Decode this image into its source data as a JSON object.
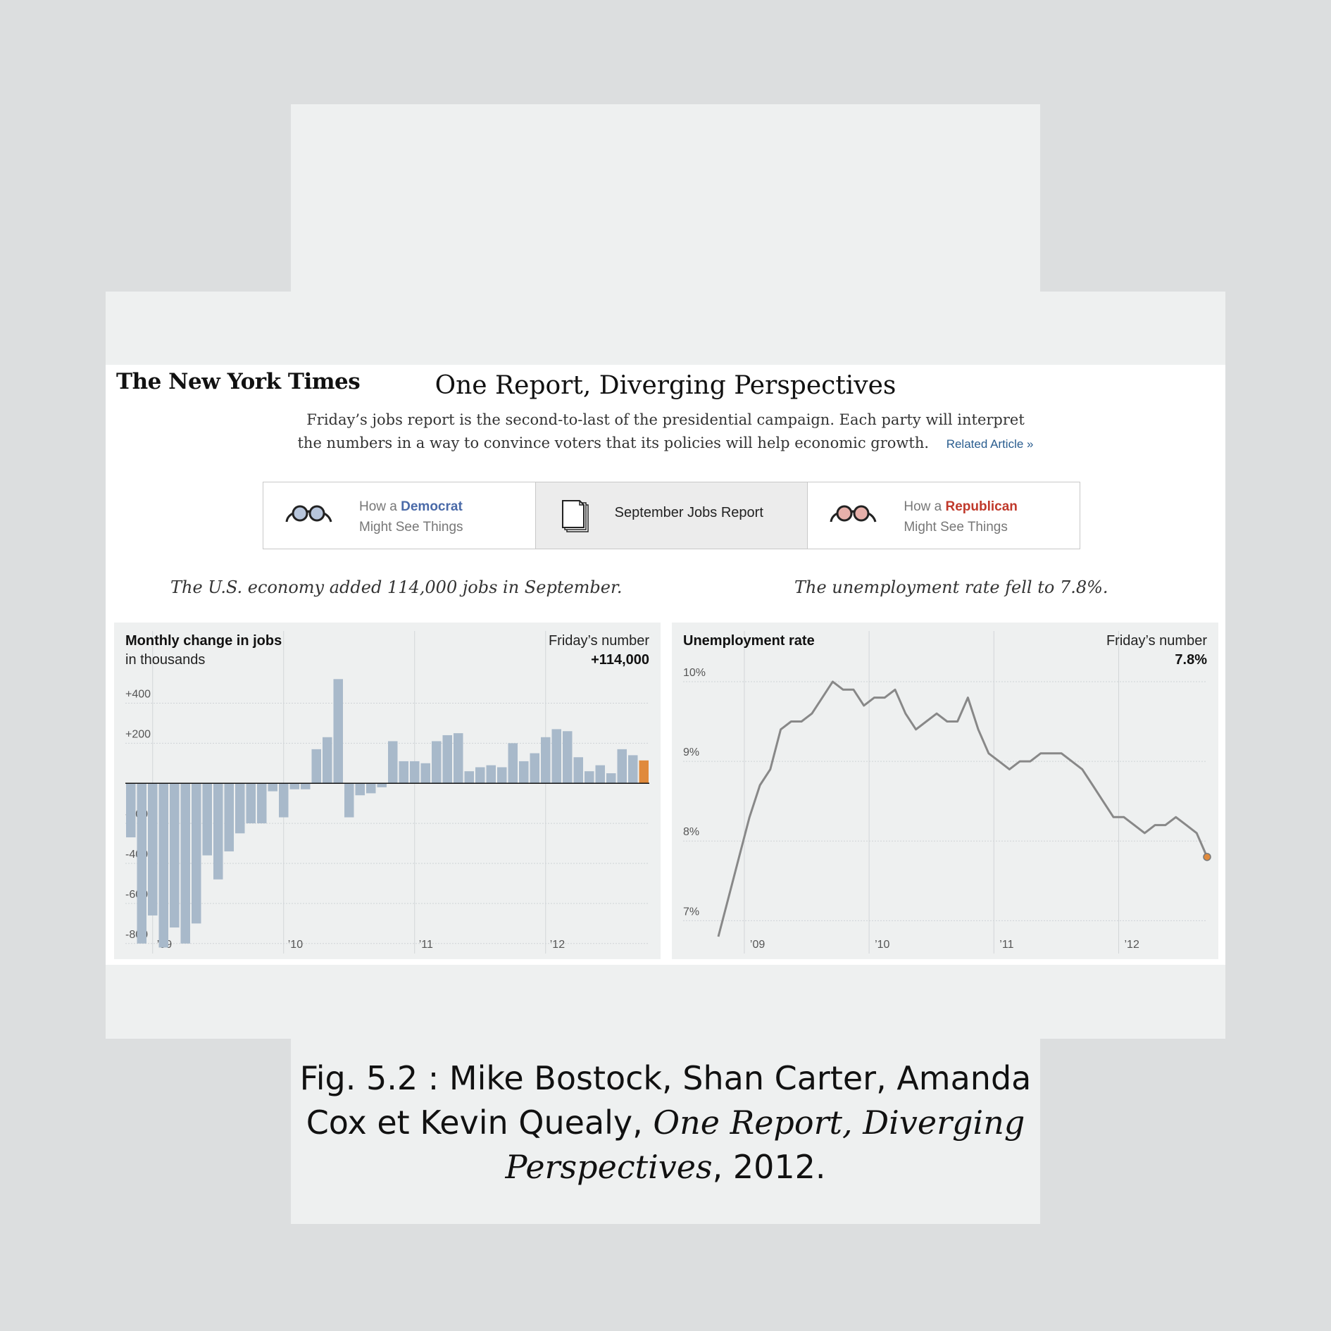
{
  "header": {
    "logo": "The New York Times",
    "title": "One Report, Diverging Perspectives",
    "intro": "Friday’s jobs report is the second-to-last of the presidential campaign. Each party will interpret the numbers in a way to convince voters that its policies will help economic growth.",
    "related_link": "Related Article »"
  },
  "tabs": [
    {
      "prefix": "How a",
      "party": "Democrat",
      "line2": "Might See Things",
      "party_color": "#4a6aa8",
      "icon": "glasses-icon"
    },
    {
      "label": "September Jobs Report",
      "icon": "document-icon"
    },
    {
      "prefix": "How a",
      "party": "Republican",
      "line2": "Might See Things",
      "party_color": "#c0392b",
      "icon": "glasses-icon"
    }
  ],
  "captions": {
    "left": "The U.S. economy added 114,000 jobs in September.",
    "right": "The unemployment rate fell to 7.8%."
  },
  "chart_data": [
    {
      "type": "bar",
      "title": "Monthly change in jobs",
      "subtitle": "in thousands",
      "annotation_label": "Friday’s number",
      "annotation_value": "+114,000",
      "ylim": [
        -850,
        500
      ],
      "yticks": [
        400,
        200,
        -200,
        -400,
        -600,
        -800
      ],
      "ytick_labels": [
        "+400",
        "+200",
        "-200",
        "-400",
        "-600",
        "-800"
      ],
      "xtick_labels": [
        "’09",
        "’10",
        "’11",
        "’12"
      ],
      "xtick_index": [
        2.5,
        14.5,
        26.5,
        38.5
      ],
      "start": "2008-08",
      "values": [
        -270,
        -800,
        -660,
        -820,
        -720,
        -800,
        -700,
        -360,
        -480,
        -340,
        -250,
        -200,
        -200,
        -40,
        -170,
        -30,
        -30,
        170,
        230,
        520,
        -170,
        -60,
        -50,
        -20,
        210,
        110,
        110,
        100,
        210,
        240,
        250,
        60,
        80,
        90,
        80,
        200,
        110,
        150,
        230,
        270,
        260,
        130,
        60,
        90,
        50,
        170,
        140,
        114
      ],
      "highlight_index": 47,
      "bar_color": "#a8b9ca",
      "highlight_color": "#e08a3c"
    },
    {
      "type": "line",
      "title": "Unemployment rate",
      "annotation_label": "Friday’s number",
      "annotation_value": "7.8%",
      "ylim": [
        6.8,
        10.3
      ],
      "yticks": [
        10,
        9,
        8,
        7
      ],
      "ytick_labels": [
        "10%",
        "9%",
        "8%",
        "7%"
      ],
      "xtick_labels": [
        "’09",
        "’10",
        "’11",
        "’12"
      ],
      "xtick_index": [
        2.5,
        14.5,
        26.5,
        38.5
      ],
      "start": "2008-08",
      "values": [
        6.8,
        7.3,
        7.8,
        8.3,
        8.7,
        8.9,
        9.4,
        9.5,
        9.5,
        9.6,
        9.8,
        10.0,
        9.9,
        9.9,
        9.7,
        9.8,
        9.8,
        9.9,
        9.6,
        9.4,
        9.5,
        9.6,
        9.5,
        9.5,
        9.8,
        9.4,
        9.1,
        9.0,
        8.9,
        9.0,
        9.0,
        9.1,
        9.1,
        9.1,
        9.0,
        8.9,
        8.7,
        8.5,
        8.3,
        8.3,
        8.2,
        8.1,
        8.2,
        8.2,
        8.3,
        8.2,
        8.1,
        7.8
      ],
      "line_color": "#888888",
      "highlight_color": "#e08a3c"
    }
  ],
  "figure_caption": {
    "prefix": "Fig. 5.2 : Mike Bostock, Shan Carter, Amanda Cox et Kevin Quealy, ",
    "work_title": "One Report, Diverging Perspectives",
    "suffix": ", 2012."
  }
}
